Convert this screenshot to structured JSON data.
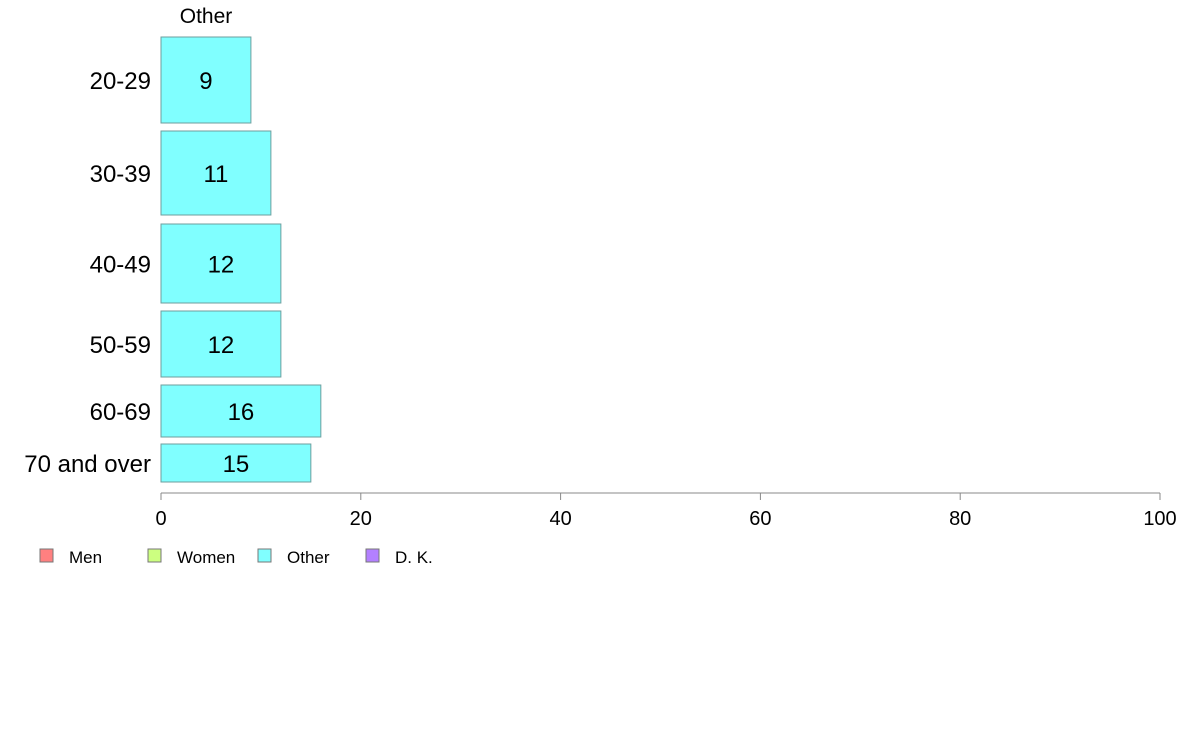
{
  "chart_data": {
    "type": "bar",
    "orientation": "horizontal",
    "column_header": "Other",
    "categories": [
      "20-29",
      "30-39",
      "40-49",
      "50-59",
      "60-69",
      "70 and over"
    ],
    "series": [
      {
        "name": "Other",
        "values": [
          9,
          11,
          12,
          12,
          16,
          15
        ],
        "color": "#80ffff"
      }
    ],
    "xlim": [
      0,
      100
    ],
    "xticks": [
      0,
      20,
      40,
      60,
      80,
      100
    ],
    "grid": false,
    "legend_position": "bottom-left",
    "legend": [
      {
        "label": "Men",
        "color": "#ff8080"
      },
      {
        "label": "Women",
        "color": "#ccff80"
      },
      {
        "label": "Other",
        "color": "#80ffff"
      },
      {
        "label": "D. K.",
        "color": "#b380ff"
      }
    ]
  }
}
